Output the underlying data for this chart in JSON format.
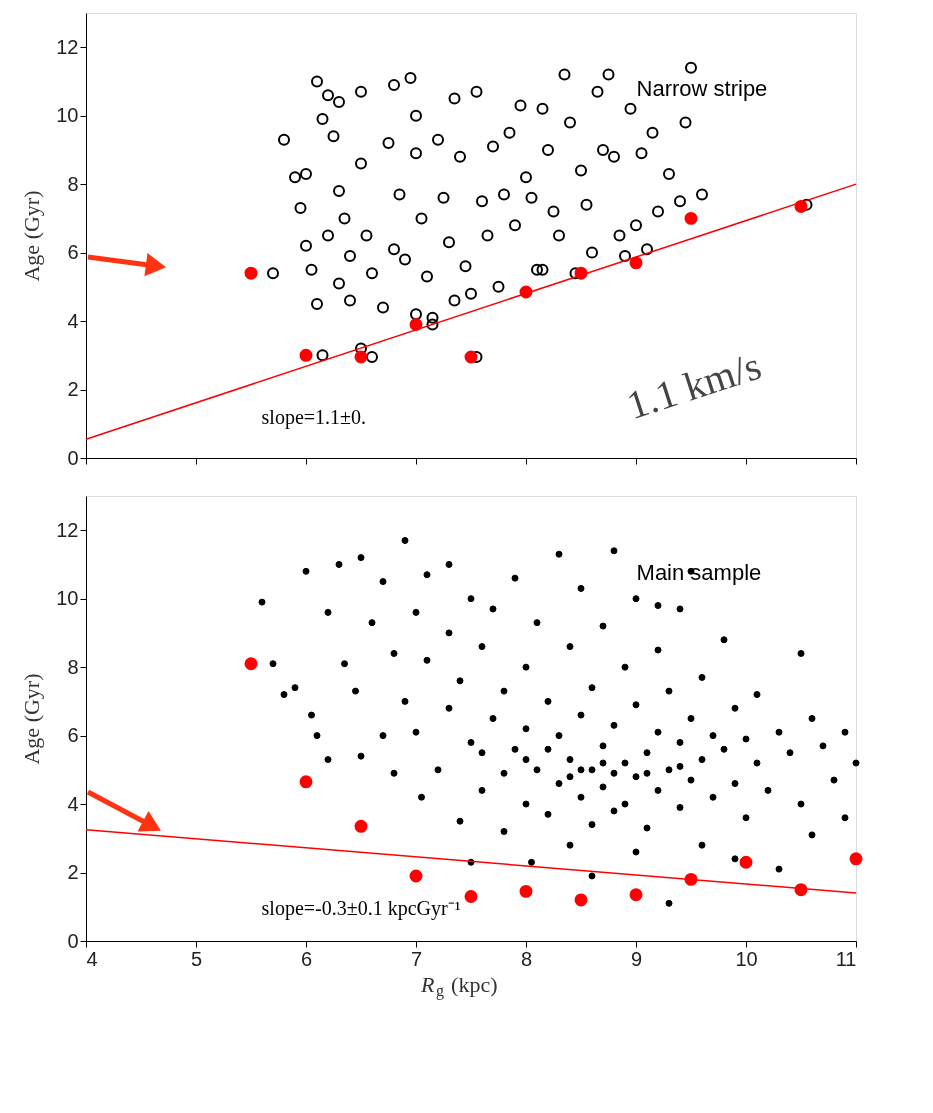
{
  "chart_data": [
    {
      "type": "scatter",
      "ylabel": "Age (Gyr)",
      "xlim": [
        4,
        11
      ],
      "xticks": [
        4,
        5,
        6,
        7,
        8,
        9,
        10,
        11
      ],
      "ylim": [
        0,
        13
      ],
      "yticks": [
        0,
        2,
        4,
        6,
        8,
        10,
        12
      ],
      "tick_labels": "y",
      "legend": false,
      "grid": false,
      "series": [
        {
          "marker": "circle",
          "color": "#000000",
          "x": [
            5.7,
            5.8,
            5.9,
            5.95,
            6.0,
            6.0,
            6.05,
            6.1,
            6.1,
            6.15,
            6.2,
            6.3,
            6.25,
            6.3,
            6.35,
            6.4,
            6.4,
            6.5,
            6.5,
            6.55,
            6.6,
            6.7,
            6.75,
            6.8,
            6.85,
            6.9,
            6.95,
            7.0,
            7.0,
            7.05,
            7.1,
            7.15,
            7.2,
            7.25,
            7.3,
            7.35,
            7.4,
            7.45,
            7.5,
            7.55,
            7.6,
            7.65,
            7.7,
            7.75,
            7.8,
            7.85,
            7.9,
            7.95,
            8.0,
            8.05,
            8.1,
            8.15,
            8.2,
            8.25,
            8.3,
            8.35,
            8.4,
            8.45,
            8.5,
            8.55,
            8.6,
            8.65,
            8.7,
            8.75,
            8.8,
            8.85,
            8.9,
            8.95,
            9.0,
            9.05,
            9.1,
            9.15,
            9.2,
            9.3,
            9.4,
            9.45,
            9.5,
            9.6,
            10.55,
            7.55,
            6.6,
            6.15,
            7.15,
            8.15,
            6.5,
            7.0,
            6.3,
            6.2,
            6.8,
            7.35
          ],
          "values": [
            5.4,
            9.3,
            8.2,
            7.3,
            8.3,
            6.2,
            5.5,
            4.5,
            11.0,
            9.9,
            10.6,
            10.4,
            9.4,
            7.8,
            7.0,
            5.9,
            4.6,
            10.7,
            8.6,
            6.5,
            5.4,
            4.4,
            9.2,
            10.9,
            7.7,
            5.8,
            11.1,
            10.0,
            8.9,
            7.0,
            5.3,
            4.1,
            9.3,
            7.6,
            6.3,
            10.5,
            8.8,
            5.6,
            4.8,
            10.7,
            7.5,
            6.5,
            9.1,
            5.0,
            7.7,
            9.5,
            6.8,
            10.3,
            8.2,
            7.6,
            5.5,
            10.2,
            9.0,
            7.2,
            6.5,
            11.2,
            9.8,
            5.4,
            8.4,
            7.4,
            6.0,
            10.7,
            9.0,
            11.2,
            8.8,
            6.5,
            5.9,
            10.2,
            6.8,
            8.9,
            6.1,
            9.5,
            7.2,
            8.3,
            7.5,
            9.8,
            11.4,
            7.7,
            7.4,
            2.95,
            2.95,
            3.0,
            3.9,
            5.5,
            3.2,
            4.2,
            5.1,
            6.5,
            6.1,
            4.6
          ]
        },
        {
          "marker": "circle",
          "color": "#ff0000",
          "x": [
            5.5,
            6,
            6.5,
            7,
            7.5,
            8,
            8.5,
            9,
            9.5,
            10.5
          ],
          "values": [
            5.4,
            3.0,
            2.95,
            3.9,
            2.95,
            4.85,
            5.4,
            5.7,
            7.0,
            7.35
          ]
        },
        {
          "type": "line",
          "marker": "none",
          "line_style": "solid",
          "color": "#ff0000",
          "x": [
            4,
            11
          ],
          "values": [
            0.55,
            8.0
          ]
        }
      ],
      "annotations": [
        "Narrow stripe",
        "slope=1.1±0.",
        "1.1 km/s"
      ]
    },
    {
      "type": "scatter",
      "xlabel": "R$_{g}$ (kpc)",
      "ylabel": "Age (Gyr)",
      "xlim": [
        4,
        11
      ],
      "xticks": [
        4,
        5,
        6,
        7,
        8,
        9,
        10,
        11
      ],
      "ylim": [
        0,
        13
      ],
      "yticks": [
        0,
        2,
        4,
        6,
        8,
        10,
        12
      ],
      "legend": false,
      "grid": false,
      "series": [
        {
          "marker": "circle",
          "color": "#000000",
          "x": [
            5.6,
            5.7,
            5.8,
            5.9,
            6.0,
            6.05,
            6.1,
            6.2,
            6.2,
            6.3,
            6.35,
            6.45,
            6.5,
            6.5,
            6.6,
            6.7,
            6.7,
            6.8,
            6.8,
            6.9,
            6.9,
            7.0,
            7.0,
            7.05,
            7.1,
            7.1,
            7.2,
            7.3,
            7.3,
            7.3,
            7.4,
            7.4,
            7.5,
            7.5,
            7.5,
            7.6,
            7.6,
            7.7,
            7.7,
            7.8,
            7.8,
            7.9,
            7.9,
            8.0,
            8.0,
            8.0,
            8.05,
            8.1,
            8.1,
            8.2,
            8.2,
            8.3,
            8.3,
            8.3,
            8.4,
            8.4,
            8.4,
            8.5,
            8.5,
            8.5,
            8.6,
            8.6,
            8.6,
            8.6,
            8.7,
            8.7,
            8.7,
            8.8,
            8.8,
            8.8,
            8.9,
            8.9,
            8.9,
            9.0,
            9.0,
            9.0,
            9.0,
            9.1,
            9.1,
            9.2,
            9.2,
            9.2,
            9.3,
            9.3,
            9.3,
            9.4,
            9.4,
            9.4,
            9.5,
            9.5,
            9.5,
            9.6,
            9.6,
            9.6,
            9.7,
            9.7,
            9.8,
            9.8,
            9.9,
            9.9,
            9.9,
            10.0,
            10.0,
            10.1,
            10.1,
            10.2,
            10.3,
            10.3,
            10.4,
            10.5,
            10.5,
            10.6,
            10.6,
            10.7,
            10.8,
            10.9,
            10.9,
            11.0,
            9.2,
            8.2,
            8.5,
            8.8,
            9.1,
            8.4,
            8.0,
            9.4,
            8.7,
            7.8,
            7.6
          ],
          "values": [
            9.9,
            8.1,
            7.2,
            7.4,
            10.8,
            6.6,
            6.0,
            5.3,
            9.6,
            11.0,
            8.1,
            7.3,
            11.2,
            5.4,
            9.3,
            10.5,
            6.0,
            8.4,
            4.9,
            11.7,
            7.0,
            9.6,
            6.1,
            4.2,
            10.7,
            8.2,
            5.0,
            11.0,
            9.0,
            6.8,
            7.6,
            3.5,
            10.0,
            5.8,
            2.3,
            8.6,
            4.4,
            9.7,
            6.5,
            7.3,
            3.2,
            10.6,
            5.6,
            8.0,
            6.2,
            4.0,
            2.3,
            9.3,
            5.0,
            7.0,
            3.7,
            11.3,
            6.0,
            4.6,
            8.6,
            5.3,
            2.8,
            10.3,
            6.6,
            4.2,
            7.4,
            5.0,
            3.4,
            1.9,
            9.2,
            5.7,
            4.5,
            11.4,
            6.3,
            3.8,
            8.0,
            5.2,
            4.0,
            10.0,
            6.9,
            4.8,
            2.6,
            5.5,
            3.3,
            8.5,
            6.1,
            4.4,
            7.3,
            5.0,
            1.1,
            9.7,
            5.8,
            3.9,
            10.8,
            6.5,
            4.7,
            7.7,
            5.3,
            2.8,
            6.0,
            4.2,
            8.8,
            5.6,
            6.8,
            4.6,
            2.4,
            5.9,
            3.6,
            7.2,
            5.2,
            4.4,
            6.1,
            2.1,
            5.5,
            8.4,
            4.0,
            6.5,
            3.1,
            5.7,
            4.7,
            6.1,
            3.6,
            5.2,
            9.8,
            5.6,
            5.0,
            4.9,
            4.9,
            4.8,
            5.3,
            5.1,
            5.2,
            4.9,
            5.5
          ]
        },
        {
          "marker": "circle",
          "color": "#ff0000",
          "x": [
            5.5,
            6,
            6.5,
            7,
            7.5,
            8,
            8.5,
            9,
            9.5,
            10,
            10.5,
            11
          ],
          "values": [
            8.1,
            4.65,
            3.35,
            1.9,
            1.3,
            1.45,
            1.2,
            1.35,
            1.8,
            2.3,
            1.5,
            2.4
          ]
        },
        {
          "type": "line",
          "marker": "none",
          "line_style": "solid",
          "color": "#ff0000",
          "x": [
            4,
            11
          ],
          "values": [
            3.25,
            1.4
          ]
        }
      ],
      "annotations": [
        "Main sample",
        "slope=-0.3±0.1 kpcGyr⁻¹"
      ]
    }
  ]
}
